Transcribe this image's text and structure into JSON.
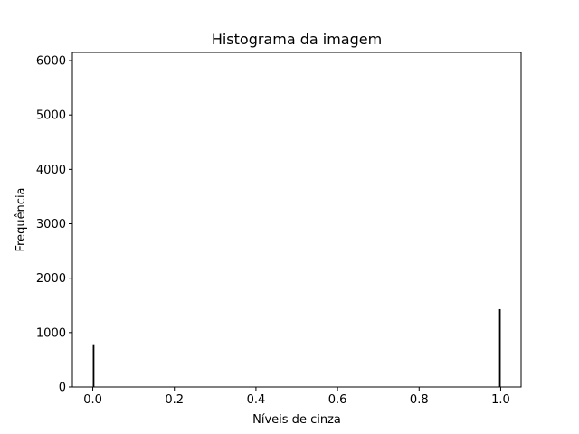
{
  "chart_data": {
    "type": "bar",
    "title": "Histograma da imagem",
    "xlabel": "Níveis de cinza",
    "ylabel": "Frequência",
    "xlim": [
      -0.05,
      1.05
    ],
    "ylim": [
      0,
      6150
    ],
    "xticks": [
      "0.0",
      "0.2",
      "0.4",
      "0.6",
      "0.8",
      "1.0"
    ],
    "yticks": [
      "0",
      "1000",
      "2000",
      "3000",
      "4000",
      "5000",
      "6000"
    ],
    "bar_color": "#000000",
    "bins": 256,
    "x_range": [
      0,
      1
    ],
    "values": [
      770,
      0,
      0,
      0,
      0,
      0,
      0,
      0,
      0,
      0,
      0,
      0,
      0,
      0,
      0,
      0,
      0,
      0,
      0,
      0,
      0,
      0,
      0,
      0,
      0,
      0,
      0,
      0,
      0,
      0,
      0,
      0,
      0,
      0,
      0,
      0,
      0,
      0,
      0,
      0,
      0,
      0,
      0,
      0,
      0,
      0,
      0,
      0,
      0,
      0,
      0,
      0,
      0,
      0,
      0,
      0,
      0,
      0,
      0,
      0,
      0,
      0,
      0,
      0,
      0,
      0,
      0,
      0,
      0,
      0,
      0,
      0,
      0,
      0,
      0,
      0,
      0,
      0,
      0,
      0,
      0,
      0,
      0,
      0,
      0,
      0,
      0,
      0,
      0,
      0,
      0,
      0,
      0,
      0,
      0,
      0,
      0,
      0,
      0,
      0,
      0,
      0,
      0,
      0,
      0,
      0,
      0,
      0,
      0,
      0,
      0,
      0,
      0,
      0,
      0,
      0,
      0,
      0,
      0,
      0,
      0,
      0,
      0,
      0,
      0,
      0,
      0,
      0,
      0,
      0,
      0,
      0,
      0,
      0,
      0,
      0,
      0,
      0,
      0,
      0,
      0,
      0,
      0,
      0,
      0,
      0,
      0,
      0,
      0,
      0,
      0,
      0,
      0,
      0,
      0,
      0,
      0,
      0,
      0,
      0,
      0,
      0,
      0,
      0,
      0,
      0,
      0,
      0,
      0,
      0,
      0,
      0,
      0,
      0,
      0,
      0,
      0,
      0,
      0,
      0,
      0,
      0,
      0,
      0,
      0,
      0,
      0,
      0,
      0,
      0,
      0,
      0,
      0,
      0,
      0,
      0,
      0,
      0,
      0,
      0,
      0,
      0,
      0,
      0,
      0,
      0,
      0,
      0,
      0,
      0,
      0,
      0,
      0,
      0,
      0,
      0,
      0,
      0,
      0,
      0,
      0,
      0,
      0,
      0,
      0,
      0,
      0,
      0,
      0,
      0,
      0,
      0,
      0,
      0,
      0,
      0,
      0,
      0,
      0,
      0,
      0,
      0,
      0,
      0,
      0,
      0,
      0,
      0,
      0,
      1430
    ]
  }
}
